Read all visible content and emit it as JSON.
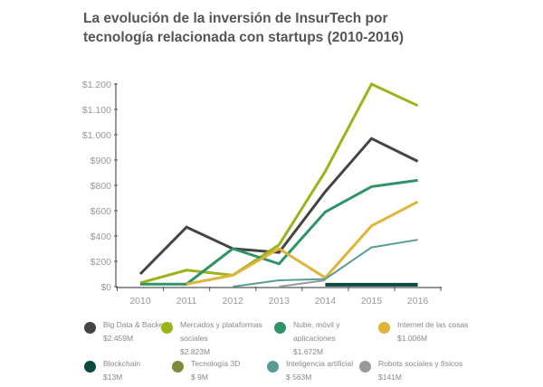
{
  "chart_data": {
    "type": "line",
    "title": "La evolución de la inversión de InsurTech por tecnología relacionada con startups (2010-2016)",
    "title_lines": [
      "La evolución de la inversión de InsurTech por",
      "tecnología relacionada con startups (2010-2016)"
    ],
    "x": [
      2010,
      2011,
      2012,
      2013,
      2014,
      2015,
      2016
    ],
    "x_tick_labels": [
      "2010",
      "2011",
      "2012",
      "2013",
      "2014",
      "2015",
      "2016"
    ],
    "y_ticks": [
      0,
      200,
      400,
      600,
      800,
      900,
      1000,
      1100,
      1200
    ],
    "y_tick_labels": [
      "$0",
      "$200",
      "$400",
      "$600",
      "$800",
      "$900",
      "$1.000",
      "$1.100",
      "$1.200"
    ],
    "ylim": [
      0,
      1200
    ],
    "grid": false,
    "legend_placement": "bottom",
    "series": [
      {
        "name": "Big Data & Backend",
        "total": "$2.459M",
        "color": "#444444",
        "width": 3,
        "values": [
          100,
          470,
          300,
          270,
          750,
          985,
          895
        ]
      },
      {
        "name": "Mercados y plataformas sociales",
        "total": "$2.823M",
        "color": "#9db31b",
        "width": 3,
        "values": [
          30,
          130,
          90,
          330,
          855,
          1215,
          1115
        ]
      },
      {
        "name": "Nube, móvil y aplicaciones",
        "total": "$1.672M",
        "color": "#2e9466",
        "width": 3,
        "values": [
          20,
          20,
          300,
          180,
          590,
          790,
          820
        ]
      },
      {
        "name": "Internet de las cosas",
        "total": "$1.006M",
        "color": "#e0b43a",
        "width": 3,
        "values": [
          null,
          20,
          90,
          300,
          70,
          480,
          670
        ]
      },
      {
        "name": "Blockchain",
        "total": "$13M",
        "color": "#0b4a40",
        "width": 4,
        "values": [
          null,
          null,
          null,
          null,
          15,
          15,
          15
        ]
      },
      {
        "name": "Tecnología 3D",
        "total": "$ 9M",
        "color": "#7c8c3c",
        "width": 2,
        "values": [
          null,
          null,
          null,
          null,
          null,
          null,
          null
        ]
      },
      {
        "name": "Inteligencia artificial",
        "total": "$ 563M",
        "color": "#5a9c94",
        "width": 2,
        "values": [
          null,
          null,
          0,
          50,
          60,
          310,
          370
        ]
      },
      {
        "name": "Robots sociales y físicos",
        "total": "$141M",
        "color": "#999999",
        "width": 2,
        "values": [
          null,
          null,
          null,
          0,
          50,
          null,
          null
        ]
      }
    ]
  }
}
